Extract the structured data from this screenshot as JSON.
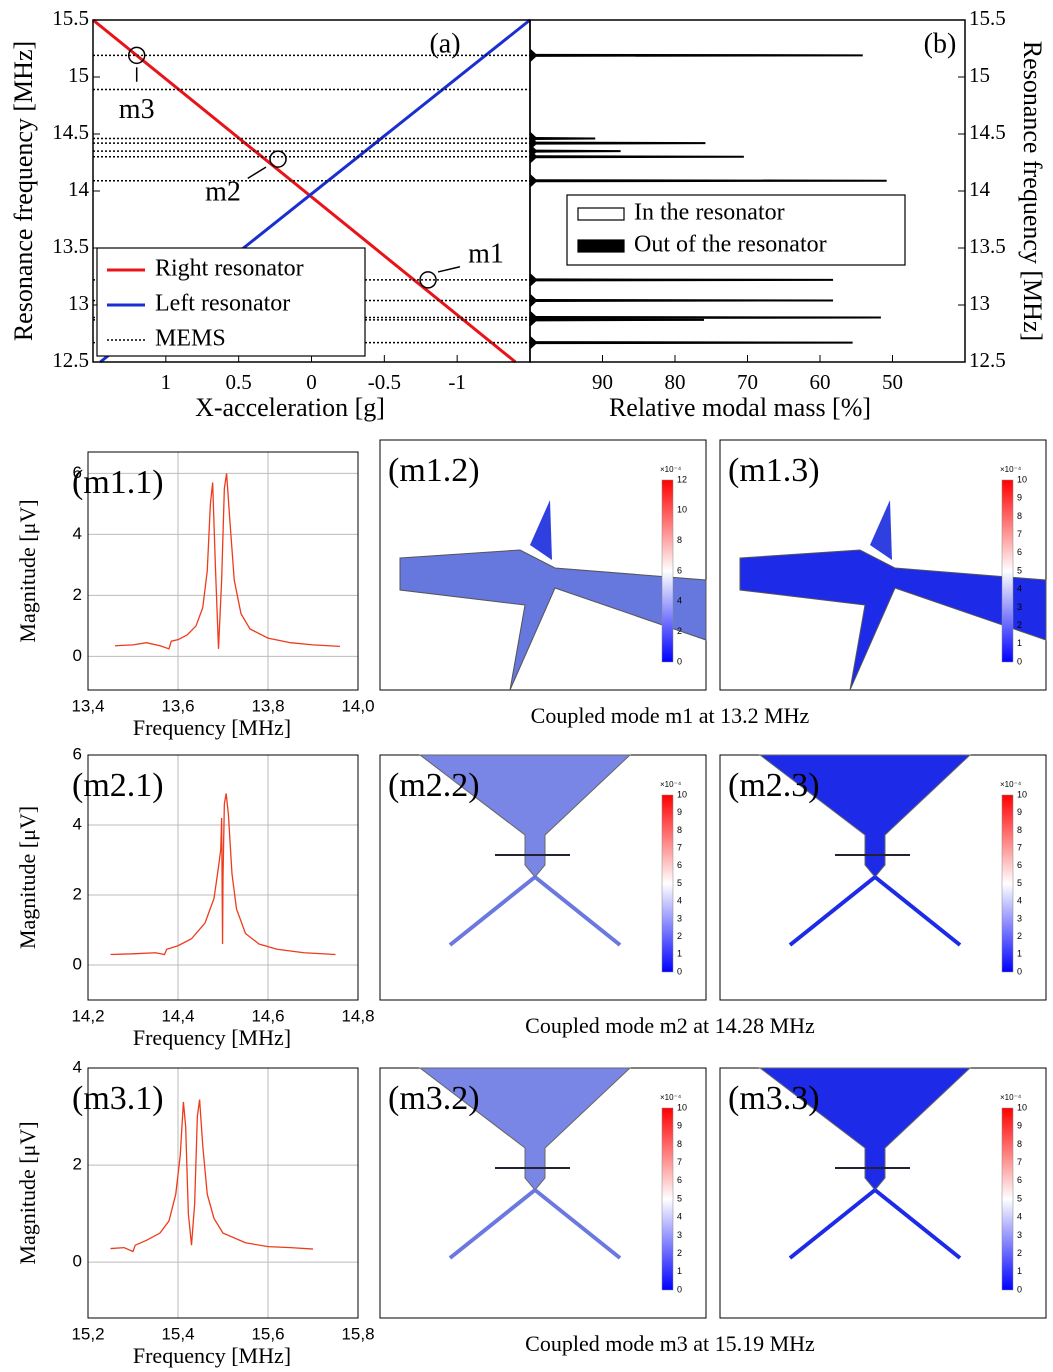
{
  "chart_data": [
    {
      "type": "line",
      "panel_label": "(a)",
      "x_label": "X-acceleration [g]",
      "y_label": "Resonance frequency [MHz]",
      "xlim": [
        1.5,
        -1.5
      ],
      "xticks": [
        1,
        0.5,
        0,
        -0.5,
        -1
      ],
      "ylim": [
        12.5,
        15.5
      ],
      "yticks": [
        12.5,
        13,
        13.5,
        14,
        14.5,
        15,
        15.5
      ],
      "legend": "lower left",
      "series": [
        {
          "name": "Right resonator",
          "color": "#e8141a",
          "x": [
            1.5,
            -1.4
          ],
          "values": [
            15.5,
            12.5
          ]
        },
        {
          "name": "Left resonator",
          "color": "#1a2fd0",
          "x": [
            1.45,
            -1.5
          ],
          "values": [
            12.5,
            15.5
          ]
        },
        {
          "name": "MEMS",
          "color": "#000000",
          "dash": true,
          "values": [
            15.19,
            14.89,
            14.46,
            14.42,
            14.35,
            14.3,
            14.09,
            13.22,
            13.04,
            12.89,
            12.87,
            12.67
          ]
        }
      ],
      "annotations": [
        {
          "label": "m1",
          "x": -0.8,
          "y": 13.22
        },
        {
          "label": "m2",
          "x": 0.23,
          "y": 14.28
        },
        {
          "label": "m3",
          "x": 1.2,
          "y": 15.19
        }
      ]
    },
    {
      "type": "bar",
      "orientation": "horizontal",
      "panel_label": "(b)",
      "x_label": "Relative modal mass [%]",
      "y_label": "Resonance frequency [MHz]",
      "xlim": [
        100,
        40
      ],
      "xticks": [
        90,
        80,
        70,
        60,
        50
      ],
      "ylim": [
        12.5,
        15.5
      ],
      "yticks": [
        12.5,
        13,
        13.5,
        14,
        14.5,
        15,
        15.5
      ],
      "y": [
        15.19,
        14.46,
        14.42,
        14.35,
        14.3,
        14.09,
        13.22,
        13.04,
        12.89,
        12.87,
        12.67
      ],
      "series": [
        {
          "name": "In the resonator",
          "color": "#ffffff"
        },
        {
          "name": "Out of the resonator",
          "color": "#000000",
          "values": [
            54.1,
            91,
            75.8,
            87.5,
            70.5,
            50.8,
            58.2,
            58.2,
            51.6,
            76,
            55.5
          ]
        }
      ]
    },
    {
      "type": "line",
      "panel_label": "(m1.1)",
      "x_label": "Frequency [MHz]",
      "y_label": "Magnitude [μV]",
      "grid": true,
      "color": "#ee3b1c",
      "xlim": [
        13.4,
        14.0
      ],
      "xticks": [
        {
          "value": 13.4,
          "label": "13,4"
        },
        {
          "value": 13.6,
          "label": "13,6"
        },
        {
          "value": 13.8,
          "label": "13,8"
        },
        {
          "value": 14.0,
          "label": "14,0"
        }
      ],
      "ylim": [
        -1.1,
        6.7
      ],
      "yticks": [
        0,
        2,
        4,
        6
      ],
      "x": [
        13.46,
        13.5,
        13.53,
        13.56,
        13.58,
        13.585,
        13.6,
        13.62,
        13.64,
        13.655,
        13.665,
        13.672,
        13.677,
        13.683,
        13.69,
        13.697,
        13.703,
        13.708,
        13.715,
        13.725,
        13.74,
        13.76,
        13.8,
        13.85,
        13.9,
        13.96
      ],
      "values": [
        0.35,
        0.38,
        0.45,
        0.35,
        0.25,
        0.5,
        0.55,
        0.7,
        1.0,
        1.6,
        2.8,
        5.0,
        5.7,
        3.0,
        0.25,
        2.5,
        5.5,
        6.0,
        4.5,
        2.5,
        1.4,
        0.9,
        0.6,
        0.45,
        0.38,
        0.33
      ]
    },
    {
      "type": "line",
      "panel_label": "(m2.1)",
      "x_label": "Frequency [MHz]",
      "y_label": "Magnitude [μV]",
      "grid": true,
      "color": "#ee3b1c",
      "xlim": [
        14.2,
        14.8
      ],
      "xticks": [
        {
          "value": 14.2,
          "label": "14,2"
        },
        {
          "value": 14.4,
          "label": "14,4"
        },
        {
          "value": 14.6,
          "label": "14,6"
        },
        {
          "value": 14.8,
          "label": "14,8"
        }
      ],
      "ylim": [
        -1,
        6
      ],
      "yticks": [
        0,
        2,
        4,
        6
      ],
      "x": [
        14.25,
        14.3,
        14.35,
        14.37,
        14.375,
        14.4,
        14.43,
        14.46,
        14.48,
        14.49,
        14.495,
        14.497,
        14.499,
        14.5,
        14.503,
        14.507,
        14.512,
        14.52,
        14.53,
        14.55,
        14.58,
        14.62,
        14.68,
        14.75
      ],
      "values": [
        0.3,
        0.32,
        0.35,
        0.3,
        0.45,
        0.55,
        0.75,
        1.2,
        1.9,
        2.8,
        3.3,
        4.2,
        0.6,
        2.5,
        4.6,
        4.9,
        4.3,
        2.6,
        1.6,
        0.9,
        0.6,
        0.45,
        0.35,
        0.3
      ]
    },
    {
      "type": "line",
      "panel_label": "(m3.1)",
      "x_label": "Frequency [MHz]",
      "y_label": "Magnitude [μV]",
      "grid": true,
      "color": "#ee3b1c",
      "xlim": [
        15.2,
        15.8
      ],
      "xticks": [
        {
          "value": 15.2,
          "label": "15,2"
        },
        {
          "value": 15.4,
          "label": "15,4"
        },
        {
          "value": 15.6,
          "label": "15,6"
        },
        {
          "value": 15.8,
          "label": "15,8"
        }
      ],
      "ylim": [
        -1.15,
        4
      ],
      "yticks": [
        0,
        2,
        4
      ],
      "x": [
        15.25,
        15.28,
        15.3,
        15.305,
        15.33,
        15.36,
        15.38,
        15.395,
        15.405,
        15.412,
        15.417,
        15.423,
        15.43,
        15.437,
        15.443,
        15.448,
        15.455,
        15.465,
        15.48,
        15.5,
        15.55,
        15.6,
        15.65,
        15.7
      ],
      "values": [
        0.28,
        0.3,
        0.22,
        0.35,
        0.45,
        0.6,
        0.85,
        1.4,
        2.2,
        3.3,
        2.8,
        1.0,
        0.35,
        1.2,
        3.0,
        3.35,
        2.4,
        1.4,
        0.9,
        0.6,
        0.4,
        0.32,
        0.3,
        0.27
      ]
    }
  ],
  "simulations": [
    {
      "label": "(m1.2)",
      "exponent": "×10⁻⁴",
      "colorbar_ticks": [
        0,
        2,
        4,
        6,
        8,
        10,
        12
      ]
    },
    {
      "label": "(m1.3)",
      "exponent": "×10⁻⁴",
      "colorbar_ticks": [
        0,
        1,
        2,
        3,
        4,
        5,
        6,
        7,
        8,
        9,
        10
      ]
    },
    {
      "label": "(m2.2)",
      "exponent": "×10⁻⁴",
      "colorbar_ticks": [
        0,
        1,
        2,
        3,
        4,
        5,
        6,
        7,
        8,
        9,
        10
      ]
    },
    {
      "label": "(m2.3)",
      "exponent": "×10⁻⁴",
      "colorbar_ticks": [
        0,
        1,
        2,
        3,
        4,
        5,
        6,
        7,
        8,
        9,
        10
      ]
    },
    {
      "label": "(m3.2)",
      "exponent": "×10⁻⁴",
      "colorbar_ticks": [
        0,
        1,
        2,
        3,
        4,
        5,
        6,
        7,
        8,
        9,
        10
      ]
    },
    {
      "label": "(m3.3)",
      "exponent": "×10⁻⁴",
      "colorbar_ticks": [
        0,
        1,
        2,
        3,
        4,
        5,
        6,
        7,
        8,
        9,
        10
      ]
    }
  ],
  "captions": [
    "Coupled mode m1 at 13.2 MHz",
    "Coupled mode m2 at 14.28 MHz",
    "Coupled mode m3 at 15.19 MHz"
  ]
}
